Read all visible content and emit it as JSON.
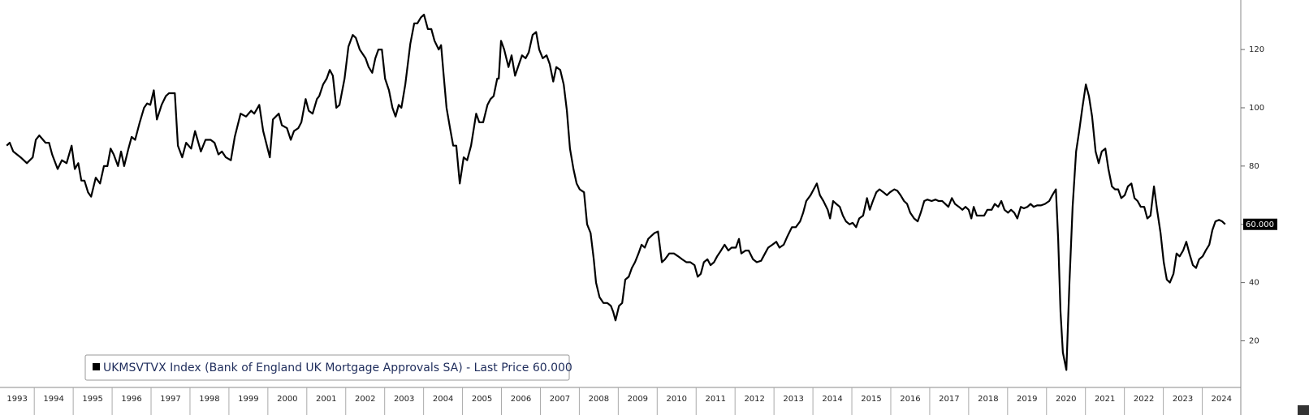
{
  "chart_data": {
    "type": "line",
    "series": [
      {
        "name": "UKMSVTVX Index (Bank of England UK Mortgage Approvals SA) - Last Price 60.000",
        "color": "#000000",
        "x": [
          1993.29,
          1993.37,
          1993.46,
          1993.65,
          1993.81,
          1993.96,
          1994.04,
          1994.13,
          1994.29,
          1994.38,
          1994.46,
          1994.6,
          1994.71,
          1994.83,
          1994.96,
          1995.04,
          1995.13,
          1995.21,
          1995.29,
          1995.38,
          1995.46,
          1995.58,
          1995.69,
          1995.79,
          1995.88,
          1995.96,
          1996.04,
          1996.15,
          1996.23,
          1996.31,
          1996.42,
          1996.5,
          1996.59,
          1996.71,
          1996.82,
          1996.9,
          1996.98,
          1997.07,
          1997.15,
          1997.27,
          1997.38,
          1997.46,
          1997.61,
          1997.69,
          1997.8,
          1997.9,
          1998.03,
          1998.13,
          1998.28,
          1998.4,
          1998.53,
          1998.63,
          1998.73,
          1998.82,
          1998.92,
          1999.05,
          1999.15,
          1999.3,
          1999.44,
          1999.57,
          1999.65,
          1999.78,
          1999.88,
          2000.05,
          2000.13,
          2000.28,
          2000.36,
          2000.49,
          2000.59,
          2000.67,
          2000.78,
          2000.86,
          2000.97,
          2001.05,
          2001.15,
          2001.26,
          2001.32,
          2001.42,
          2001.51,
          2001.59,
          2001.67,
          2001.76,
          2001.84,
          2001.97,
          2002.07,
          2002.18,
          2002.26,
          2002.36,
          2002.51,
          2002.59,
          2002.68,
          2002.76,
          2002.84,
          2002.93,
          2003.01,
          2003.11,
          2003.2,
          2003.28,
          2003.36,
          2003.43,
          2003.53,
          2003.66,
          2003.76,
          2003.84,
          2003.93,
          2004.01,
          2004.11,
          2004.2,
          2004.28,
          2004.39,
          2004.45,
          2004.51,
          2004.59,
          2004.68,
          2004.76,
          2004.84,
          2004.93,
          2005.03,
          2005.12,
          2005.22,
          2005.35,
          2005.43,
          2005.53,
          2005.64,
          2005.72,
          2005.8,
          2005.89,
          2005.93,
          2005.99,
          2006.07,
          2006.18,
          2006.26,
          2006.35,
          2006.45,
          2006.53,
          2006.62,
          2006.7,
          2006.8,
          2006.89,
          2006.97,
          2007.06,
          2007.16,
          2007.24,
          2007.33,
          2007.41,
          2007.51,
          2007.6,
          2007.68,
          2007.76,
          2007.85,
          2007.93,
          2008.01,
          2008.12,
          2008.2,
          2008.29,
          2008.37,
          2008.43,
          2008.52,
          2008.62,
          2008.72,
          2008.81,
          2008.87,
          2008.93,
          2009.02,
          2009.1,
          2009.18,
          2009.27,
          2009.35,
          2009.43,
          2009.52,
          2009.6,
          2009.68,
          2009.77,
          2009.85,
          2009.93,
          2010.02,
          2010.12,
          2010.2,
          2010.31,
          2010.43,
          2010.54,
          2010.64,
          2010.75,
          2010.85,
          2010.96,
          2011.04,
          2011.12,
          2011.2,
          2011.29,
          2011.37,
          2011.46,
          2011.54,
          2011.64,
          2011.73,
          2011.83,
          2011.91,
          2012.02,
          2012.1,
          2012.16,
          2012.27,
          2012.35,
          2012.46,
          2012.56,
          2012.67,
          2012.77,
          2012.85,
          2012.96,
          2013.06,
          2013.14,
          2013.25,
          2013.35,
          2013.46,
          2013.56,
          2013.67,
          2013.75,
          2013.83,
          2013.94,
          2014.02,
          2014.1,
          2014.18,
          2014.27,
          2014.38,
          2014.44,
          2014.52,
          2014.6,
          2014.69,
          2014.77,
          2014.85,
          2014.94,
          2015.02,
          2015.11,
          2015.19,
          2015.29,
          2015.39,
          2015.46,
          2015.54,
          2015.63,
          2015.71,
          2015.81,
          2015.9,
          2015.98,
          2016.09,
          2016.17,
          2016.25,
          2016.34,
          2016.42,
          2016.5,
          2016.6,
          2016.69,
          2016.77,
          2016.86,
          2016.94,
          2017.05,
          2017.15,
          2017.23,
          2017.32,
          2017.4,
          2017.48,
          2017.57,
          2017.65,
          2017.75,
          2017.84,
          2017.92,
          2018.0,
          2018.07,
          2018.13,
          2018.21,
          2018.32,
          2018.4,
          2018.48,
          2018.59,
          2018.67,
          2018.76,
          2018.84,
          2018.92,
          2019.01,
          2019.09,
          2019.17,
          2019.25,
          2019.34,
          2019.42,
          2019.51,
          2019.59,
          2019.67,
          2019.76,
          2019.86,
          2019.96,
          2020.07,
          2020.15,
          2020.24,
          2020.3,
          2020.36,
          2020.42,
          2020.51,
          2020.59,
          2020.67,
          2020.76,
          2020.84,
          2020.92,
          2021.01,
          2021.09,
          2021.17,
          2021.26,
          2021.34,
          2021.42,
          2021.51,
          2021.59,
          2021.68,
          2021.76,
          2021.84,
          2021.92,
          2022.01,
          2022.09,
          2022.18,
          2022.26,
          2022.34,
          2022.42,
          2022.51,
          2022.59,
          2022.67,
          2022.76,
          2022.84,
          2022.93,
          2023.01,
          2023.09,
          2023.17,
          2023.26,
          2023.34,
          2023.42,
          2023.51,
          2023.59,
          2023.67,
          2023.76,
          2023.84,
          2023.92,
          2024.01,
          2024.09,
          2024.18,
          2024.26,
          2024.34,
          2024.43,
          2024.51,
          2024.59
        ],
        "values": [
          87,
          88,
          85,
          83,
          81,
          83,
          89,
          90.5,
          88,
          88,
          84,
          79,
          82,
          81,
          87,
          79,
          81,
          75,
          75,
          71,
          69.5,
          76,
          74,
          80,
          80,
          86,
          84,
          80,
          85,
          80,
          86,
          90,
          89,
          95,
          100,
          101.5,
          101,
          106,
          96,
          101,
          104,
          105,
          105,
          87,
          83,
          88,
          86,
          92,
          85,
          89,
          89,
          88,
          84,
          85,
          83,
          82,
          90,
          98,
          97,
          99,
          98,
          101,
          92,
          83,
          96,
          98,
          94,
          93,
          89,
          92,
          93,
          95,
          103,
          99,
          98,
          103,
          104,
          108,
          110,
          113,
          111,
          100,
          101,
          110,
          121,
          125,
          124,
          120,
          117,
          114,
          112,
          117,
          120,
          120,
          110,
          106,
          100,
          97,
          101,
          100,
          108,
          122,
          129,
          129,
          131,
          132,
          127,
          127,
          123,
          120,
          121.5,
          112,
          100,
          93,
          87,
          87,
          74,
          83,
          82,
          87,
          98,
          95,
          95,
          101,
          103,
          104,
          110,
          110,
          123,
          120,
          114,
          118,
          111,
          115,
          118,
          117,
          119,
          125,
          126,
          120,
          117,
          118,
          115,
          109,
          114,
          113,
          108,
          99,
          86,
          79,
          74,
          72,
          71,
          60,
          57,
          48,
          40,
          35,
          33,
          33,
          32,
          30,
          27,
          32,
          33,
          41,
          42,
          45,
          47,
          50,
          53,
          52,
          55,
          56,
          57,
          57.5,
          47,
          48,
          50,
          50,
          49,
          48,
          47,
          47,
          46,
          42,
          43,
          47,
          48,
          46,
          47,
          49,
          51,
          53,
          51,
          52,
          52,
          55,
          50,
          51,
          51,
          48,
          47,
          47.5,
          50,
          52,
          53,
          54,
          52,
          53,
          56,
          59,
          59,
          61,
          64,
          68,
          70,
          72,
          74,
          70,
          68,
          65,
          62,
          68,
          67,
          66,
          63,
          61,
          60,
          60.5,
          59,
          62,
          63,
          69,
          65,
          68,
          71,
          72,
          71,
          70,
          71,
          72,
          71.5,
          70,
          68,
          67,
          64,
          62,
          61,
          64,
          68,
          68.5,
          68,
          68.5,
          68,
          68,
          67,
          66,
          69,
          67,
          66,
          65,
          66,
          65,
          62,
          66,
          63,
          63,
          63,
          65,
          65,
          67,
          66,
          68,
          65,
          64,
          65,
          64,
          62,
          66,
          65.5,
          66,
          67,
          66,
          66.5,
          66.5,
          67,
          68,
          70,
          72,
          55,
          30,
          16,
          10,
          40,
          66,
          85,
          92,
          100,
          108,
          104,
          97,
          85,
          81,
          85,
          86,
          79,
          73,
          72,
          72,
          69,
          70,
          73,
          74,
          69,
          68,
          66,
          66,
          62,
          63,
          73,
          65,
          57,
          47,
          41,
          40,
          43,
          50,
          49,
          51,
          54,
          50,
          46,
          45,
          48,
          49,
          51,
          53,
          58,
          61,
          61.5,
          61,
          60
        ]
      }
    ],
    "last_price": {
      "value": 60,
      "label": "60.000"
    },
    "xlim": [
      1993.12,
      2024.99
    ],
    "xticks": [
      1993,
      1994,
      1995,
      1996,
      1997,
      1998,
      1999,
      2000,
      2001,
      2002,
      2003,
      2004,
      2005,
      2006,
      2007,
      2008,
      2009,
      2010,
      2011,
      2012,
      2013,
      2014,
      2015,
      2016,
      2017,
      2018,
      2019,
      2020,
      2021,
      2022,
      2023,
      2024
    ],
    "ylim": [
      4,
      137
    ],
    "yticks": [
      20,
      40,
      60,
      80,
      100,
      120
    ],
    "legend": "bottom-left"
  }
}
